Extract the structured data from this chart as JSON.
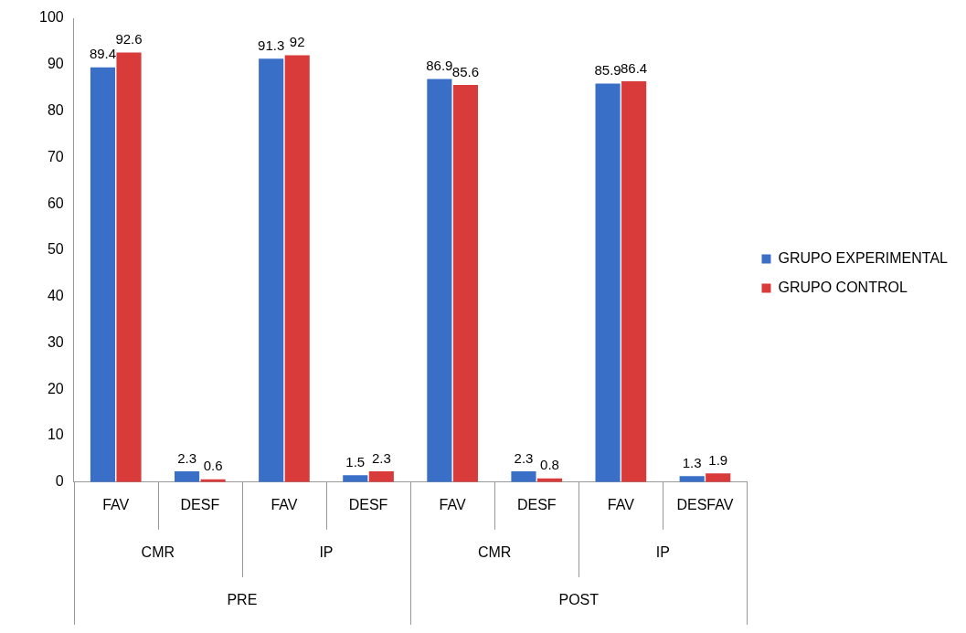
{
  "chart_data": {
    "type": "bar",
    "categories": [
      "FAV",
      "DESF",
      "FAV",
      "DESF",
      "FAV",
      "DESF",
      "FAV",
      "DESFAV"
    ],
    "series": [
      {
        "name": "GRUPO EXPERIMENTAL",
        "color": "#3a6fc7",
        "values": [
          89.4,
          2.3,
          91.3,
          1.5,
          86.9,
          2.3,
          85.9,
          1.3
        ]
      },
      {
        "name": "GRUPO CONTROL",
        "color": "#d93a3a",
        "values": [
          92.6,
          0.6,
          92,
          2.3,
          85.6,
          0.8,
          86.4,
          1.9
        ]
      }
    ],
    "ylim": [
      0,
      100
    ],
    "yticks": [
      0,
      10,
      20,
      30,
      40,
      50,
      60,
      70,
      80,
      90,
      100
    ],
    "grid": false,
    "legend": "right",
    "data_labels": true,
    "annotations": [
      "CMR",
      "IP",
      "CMR",
      "IP",
      "PRE",
      "POST"
    ]
  }
}
